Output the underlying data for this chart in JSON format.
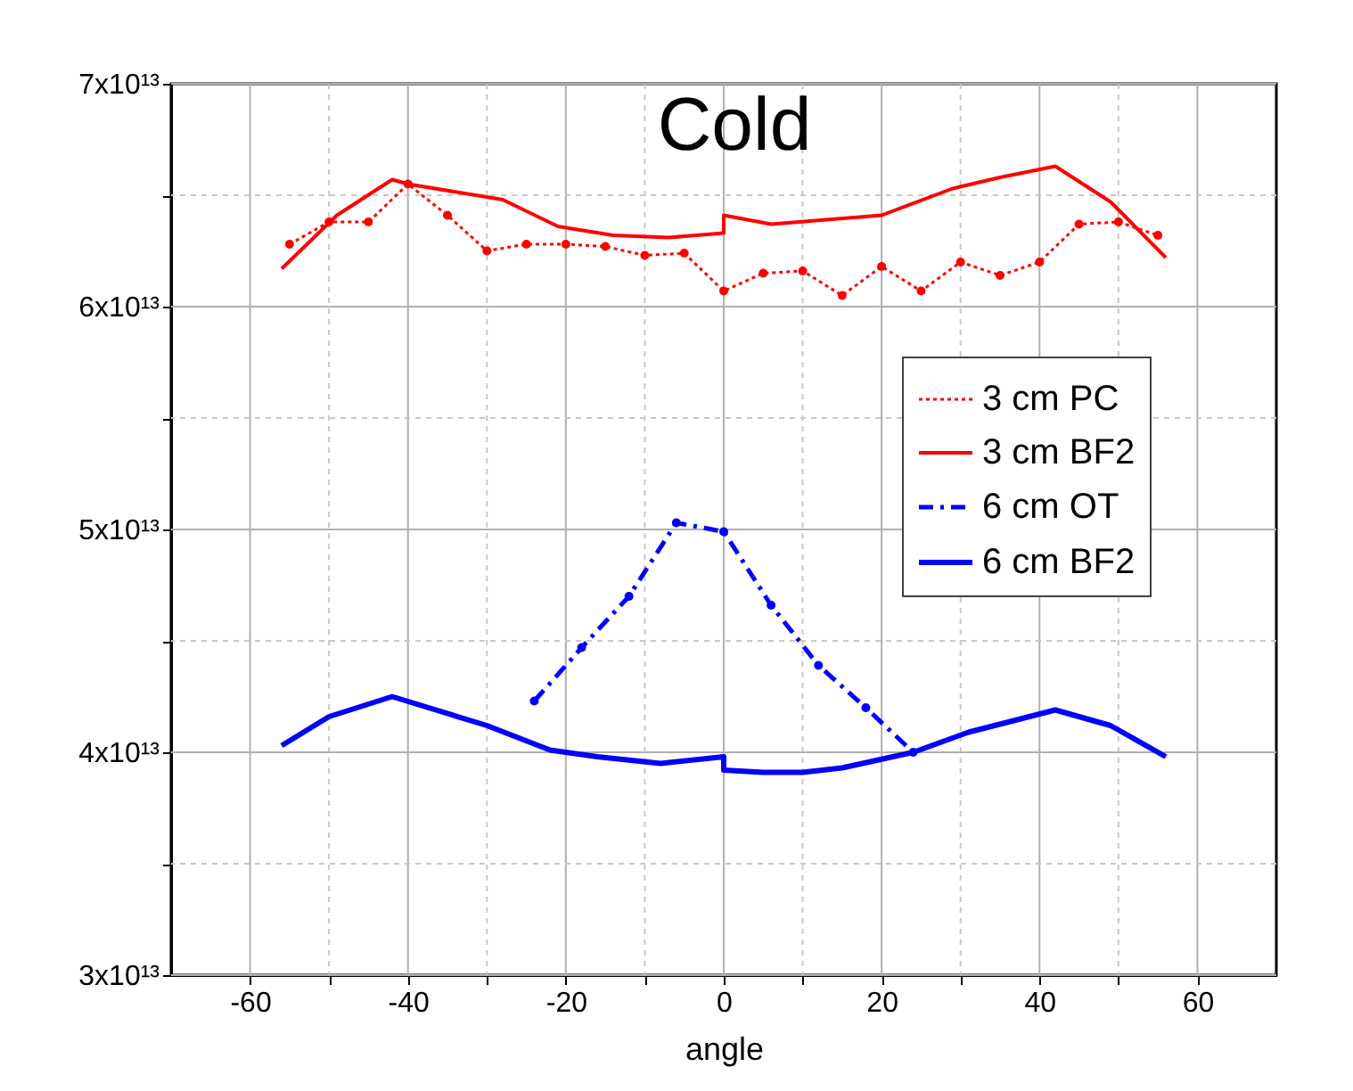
{
  "chart_data": {
    "type": "line",
    "title": "Cold",
    "xlabel": "angle",
    "xlim": [
      -70,
      70
    ],
    "xticks": [
      -60,
      {
        "value": -50,
        "label": null
      },
      -40,
      {
        "value": -30,
        "label": null
      },
      -20,
      {
        "value": -10,
        "label": null
      },
      0,
      {
        "value": 10,
        "label": null
      },
      20,
      {
        "value": 30,
        "label": null
      },
      40,
      {
        "value": 50,
        "label": null
      },
      60
    ],
    "ylim": [
      30000000000000,
      70000000000000
    ],
    "yticks": [
      {
        "value": 30000000000000,
        "label": "3x10¹³"
      },
      {
        "value": 35000000000000,
        "label": null
      },
      {
        "value": 40000000000000,
        "label": "4x10¹³"
      },
      {
        "value": 45000000000000,
        "label": null
      },
      {
        "value": 50000000000000,
        "label": "5x10¹³"
      },
      {
        "value": 55000000000000,
        "label": null
      },
      {
        "value": 60000000000000,
        "label": "6x10¹³"
      },
      {
        "value": 65000000000000,
        "label": null
      },
      {
        "value": 70000000000000,
        "label": "7x10¹³"
      }
    ],
    "grid": true,
    "legend": "top right",
    "series": [
      {
        "name": "3 cm PC",
        "color": "#ff0000",
        "line_style": "dotted",
        "marker": "circle",
        "x": [
          -55,
          -50,
          -45,
          -40,
          -35,
          -30,
          -25,
          -20,
          -15,
          -10,
          -5,
          0,
          5,
          10,
          15,
          20,
          25,
          30,
          35,
          40,
          45,
          50,
          55
        ],
        "values": [
          62800000000000,
          63800000000000,
          63800000000000,
          65500000000000,
          64100000000000,
          62500000000000,
          62800000000000,
          62800000000000,
          62700000000000,
          62300000000000,
          62400000000000,
          60700000000000,
          61500000000000,
          61600000000000,
          60500000000000,
          61800000000000,
          60700000000000,
          62000000000000,
          61400000000000,
          62000000000000,
          63700000000000,
          63800000000000,
          63200000000000
        ]
      },
      {
        "name": "3 cm BF2",
        "color": "#ff0000",
        "line_style": "solid",
        "marker": "none",
        "x": [
          -56,
          -49,
          -42,
          -40,
          -28,
          -21,
          -14,
          -7,
          0,
          0,
          6,
          20,
          29,
          35,
          42,
          49,
          56
        ],
        "values": [
          61700000000000,
          64100000000000,
          65700000000000,
          65500000000000,
          64800000000000,
          63600000000000,
          63200000000000,
          63100000000000,
          63300000000000,
          64100000000000,
          63700000000000,
          64100000000000,
          65300000000000,
          65800000000000,
          66300000000000,
          64700000000000,
          62200000000000
        ]
      },
      {
        "name": "6 cm OT",
        "color": "#0000ff",
        "line_style": "dashed",
        "marker": "circle",
        "x": [
          -24,
          -18,
          -12,
          -6,
          0,
          6,
          12,
          18,
          24
        ],
        "values": [
          42300000000000,
          44700000000000,
          47000000000000,
          50300000000000,
          49900000000000,
          46600000000000,
          43900000000000,
          42000000000000,
          40000000000000
        ]
      },
      {
        "name": "6 cm BF2",
        "color": "#0000ff",
        "line_style": "solid",
        "marker": "none",
        "x": [
          -56,
          -50,
          -42,
          -30,
          -22,
          -16,
          -8,
          0,
          0,
          5,
          10,
          15,
          24,
          31,
          42,
          49,
          56
        ],
        "values": [
          40300000000000,
          41600000000000,
          42500000000000,
          41200000000000,
          40100000000000,
          39800000000000,
          39500000000000,
          39800000000000,
          39200000000000,
          39100000000000,
          39100000000000,
          39300000000000,
          40000000000000,
          40900000000000,
          41900000000000,
          41200000000000,
          39800000000000
        ]
      }
    ]
  }
}
